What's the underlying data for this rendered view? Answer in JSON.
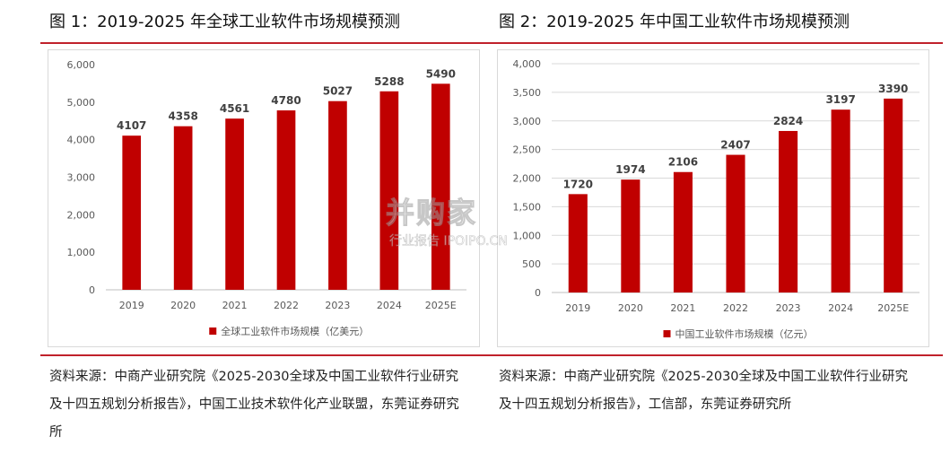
{
  "colors": {
    "bar": "#C00000",
    "rule": "#C0212B",
    "grid": "#D9D9D9"
  },
  "watermark": {
    "main": "并购家",
    "sub": "行业报告 IPOIPO.CN"
  },
  "chart_data": [
    {
      "type": "bar",
      "title": "图 1：2019-2025 年全球工业软件市场规模预测",
      "categories": [
        "2019",
        "2020",
        "2021",
        "2022",
        "2023",
        "2024",
        "2025E"
      ],
      "series": [
        {
          "name": "全球工业软件市场规模（亿美元）",
          "values": [
            4107,
            4358,
            4561,
            4780,
            5027,
            5288,
            5490
          ]
        }
      ],
      "ylim": [
        0,
        6000
      ],
      "yticks": [
        "0",
        "1,000",
        "2,000",
        "3,000",
        "4,000",
        "5,000",
        "6,000"
      ],
      "grid": false,
      "legend": "bottom",
      "source": "资料来源：中商产业研究院《2025-2030全球及中国工业软件行业研究及十四五规划分析报告》，中国工业技术软件化产业联盟，东莞证券研究所"
    },
    {
      "type": "bar",
      "title": "图 2：2019-2025 年中国工业软件市场规模预测",
      "categories": [
        "2019",
        "2020",
        "2021",
        "2022",
        "2023",
        "2024",
        "2025E"
      ],
      "series": [
        {
          "name": "中国工业软件市场规模（亿元）",
          "values": [
            1720,
            1974,
            2106,
            2407,
            2824,
            3197,
            3390
          ]
        }
      ],
      "ylim": [
        0,
        4000
      ],
      "yticks": [
        "0",
        "500",
        "1,000",
        "1,500",
        "2,000",
        "2,500",
        "3,000",
        "3,500",
        "4,000"
      ],
      "grid": true,
      "legend": "bottom",
      "source": "资料来源：中商产业研究院《2025-2030全球及中国工业软件行业研究及十四五规划分析报告》，工信部，东莞证券研究所"
    }
  ]
}
